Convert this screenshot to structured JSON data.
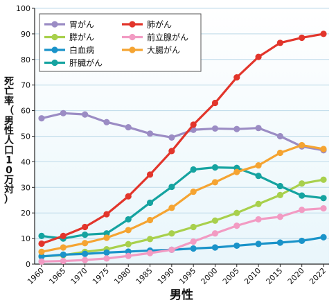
{
  "chart_data": {
    "type": "line",
    "ylabel": "死亡率（男性人口10万対）",
    "xlabel": "男性",
    "ylim": [
      0,
      100
    ],
    "yticks": [
      0,
      10,
      20,
      30,
      40,
      50,
      60,
      70,
      80,
      90,
      100
    ],
    "x": [
      "1960",
      "1965",
      "1970",
      "1975",
      "1980",
      "1985",
      "1990",
      "1995",
      "2000",
      "2005",
      "2010",
      "2015",
      "2020",
      "2022"
    ],
    "grid": true,
    "legend_position": "top-left",
    "series": [
      {
        "name": "胃がん",
        "color": "#9b8cc4",
        "values": [
          57,
          59,
          58.5,
          55.5,
          53.5,
          51,
          49.5,
          52.5,
          53,
          52.8,
          53.2,
          50,
          46,
          44.5
        ]
      },
      {
        "name": "膵がん",
        "color": "#a8d04c",
        "values": [
          3,
          3.5,
          4.8,
          5.8,
          7.8,
          9.8,
          12,
          14.5,
          17,
          20,
          23.5,
          27,
          31.5,
          33
        ]
      },
      {
        "name": "白血病",
        "color": "#1a93c9",
        "values": [
          3,
          3.7,
          4,
          4.5,
          4.9,
          5.3,
          5.6,
          6.1,
          6.5,
          7.2,
          7.9,
          8.4,
          9.1,
          10.5
        ]
      },
      {
        "name": "肝臓がん",
        "color": "#15a3a0",
        "values": [
          11,
          10,
          11.5,
          12,
          17.5,
          24,
          30.2,
          37,
          37.8,
          37.6,
          34.5,
          30.5,
          26.8,
          25.8
        ]
      },
      {
        "name": "肺がん",
        "color": "#e2352b",
        "values": [
          8,
          11,
          14.5,
          19.5,
          26.5,
          35,
          44.2,
          54.5,
          63,
          73,
          81,
          86.5,
          88.5,
          90
        ]
      },
      {
        "name": "前立腺がん",
        "color": "#f29bc3",
        "values": [
          1,
          1.2,
          1.6,
          2.2,
          3.2,
          4.3,
          5.6,
          8.8,
          12,
          15,
          17.5,
          18.5,
          21.2,
          21.8
        ]
      },
      {
        "name": "大腸がん",
        "color": "#f5a432",
        "values": [
          4.8,
          6.5,
          8.2,
          10.3,
          13.3,
          17.2,
          22,
          28.3,
          32,
          36,
          38.6,
          43.5,
          46.5,
          45
        ]
      }
    ]
  }
}
